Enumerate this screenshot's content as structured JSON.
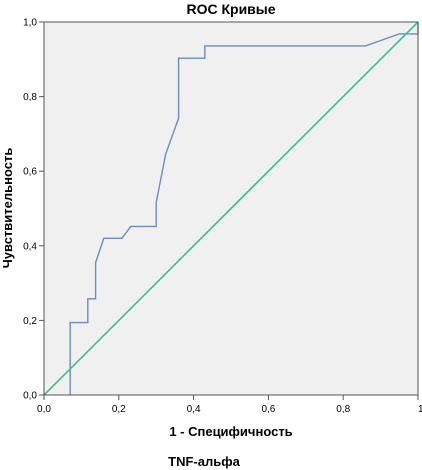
{
  "chart_data": {
    "type": "line",
    "title": "ROC Кривые",
    "xlabel": "1 - Специфичность",
    "ylabel": "Чувствительность",
    "caption": "TNF-альфа",
    "xlim": [
      0,
      1
    ],
    "ylim": [
      0,
      1
    ],
    "x_ticks": [
      "0,0",
      "0,2",
      "0,4",
      "0,6",
      "0,8",
      "1,0"
    ],
    "y_ticks": [
      "0,0",
      "0,2",
      "0,4",
      "0,6",
      "0,8",
      "1,0"
    ],
    "grid": false,
    "series": [
      {
        "color": "#6b8bc4",
        "points": [
          [
            0.07,
            0.0
          ],
          [
            0.07,
            0.194
          ],
          [
            0.117,
            0.194
          ],
          [
            0.117,
            0.258
          ],
          [
            0.138,
            0.258
          ],
          [
            0.138,
            0.355
          ],
          [
            0.16,
            0.42
          ],
          [
            0.208,
            0.42
          ],
          [
            0.232,
            0.452
          ],
          [
            0.3,
            0.452
          ],
          [
            0.3,
            0.516
          ],
          [
            0.325,
            0.645
          ],
          [
            0.36,
            0.742
          ],
          [
            0.36,
            0.903
          ],
          [
            0.43,
            0.903
          ],
          [
            0.43,
            0.936
          ],
          [
            0.86,
            0.936
          ],
          [
            0.95,
            0.968
          ],
          [
            1.0,
            0.968
          ],
          [
            1.0,
            1.0
          ]
        ]
      },
      {
        "color": "#3dba9a",
        "points": [
          [
            0,
            0
          ],
          [
            1,
            1
          ]
        ]
      }
    ],
    "plot_background": "#f0f0f0",
    "frame_color": "#555555"
  }
}
